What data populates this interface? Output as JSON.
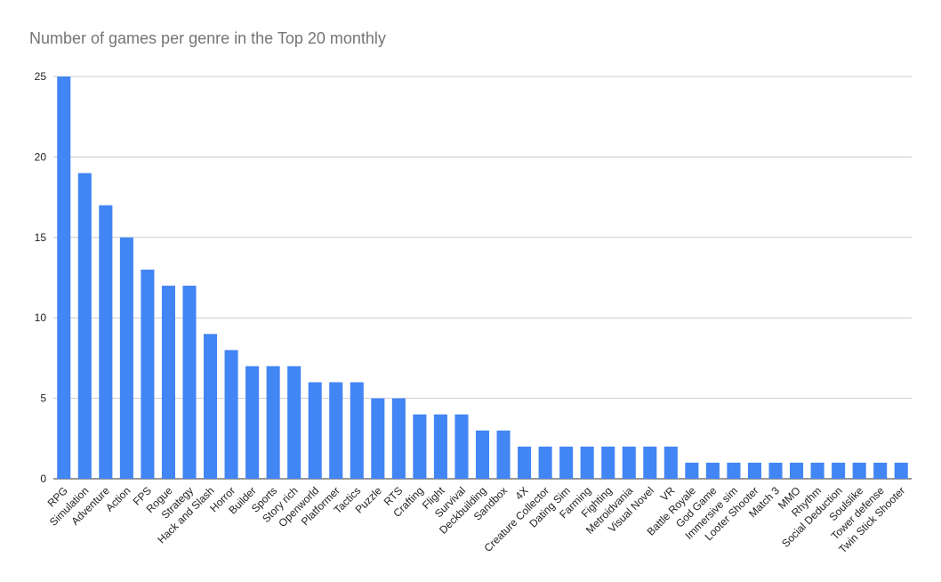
{
  "chart_data": {
    "type": "bar",
    "title": "Number of games per genre in the Top 20 monthly",
    "xlabel": "",
    "ylabel": "",
    "ylim": [
      0,
      25
    ],
    "yticks": [
      "0",
      "5",
      "10",
      "15",
      "20",
      "25"
    ],
    "grid": true,
    "legend": "none",
    "bar_color": "#4285F4",
    "categories": [
      "RPG",
      "Simulation",
      "Adventure",
      "Action",
      "FPS",
      "Rogue",
      "Strategy",
      "Hack and Slash",
      "Horror",
      "Builder",
      "Sports",
      "Story rich",
      "Openworld",
      "Platformer",
      "Tactics",
      "Puzzle",
      "RTS",
      "Crafting",
      "Flight",
      "Survival",
      "Deckbuilding",
      "Sandbox",
      "4X",
      "Creature Collector",
      "Dating Sim",
      "Farming",
      "Fighting",
      "Metroidvania",
      "Visual Novel",
      "VR",
      "Battle Royale",
      "God Game",
      "Immersive sim",
      "Looter Shooter",
      "Match 3",
      "MMO",
      "Rhythm",
      "Social Deduction",
      "Soulslike",
      "Tower defense",
      "Twin Stick Shooter"
    ],
    "values": [
      25,
      19,
      17,
      15,
      13,
      12,
      12,
      9,
      8,
      7,
      7,
      7,
      6,
      6,
      6,
      5,
      5,
      4,
      4,
      4,
      3,
      3,
      2,
      2,
      2,
      2,
      2,
      2,
      2,
      2,
      1,
      1,
      1,
      1,
      1,
      1,
      1,
      1,
      1,
      1,
      1
    ]
  }
}
